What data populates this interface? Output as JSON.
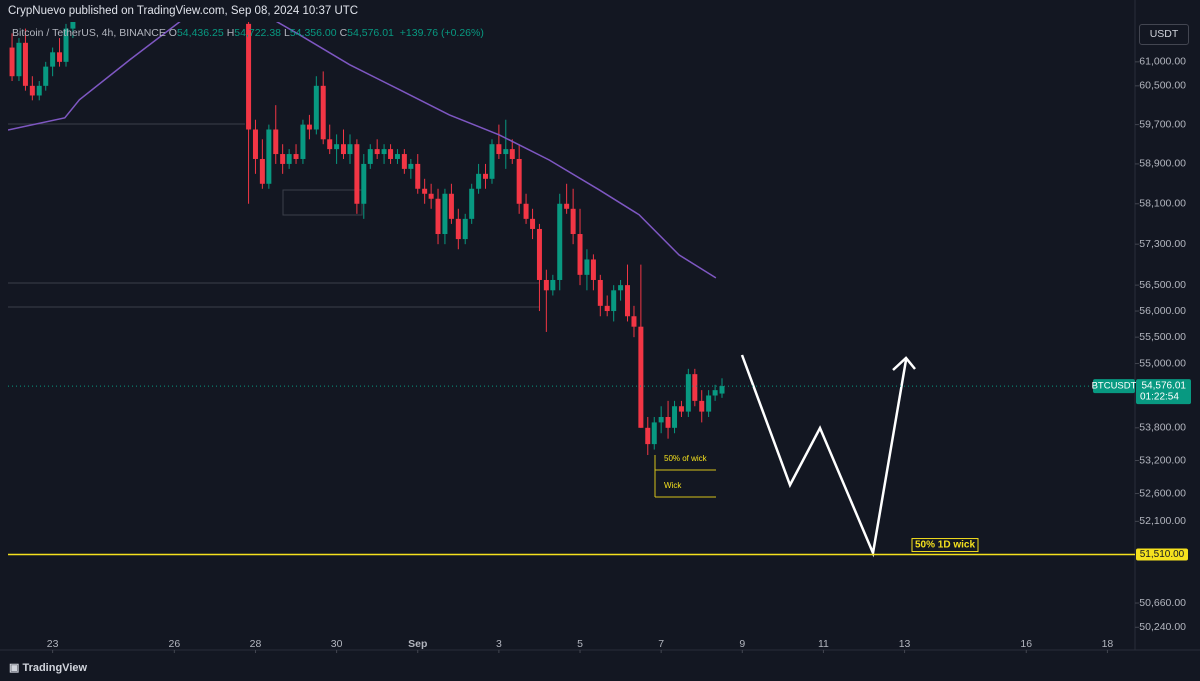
{
  "header": "CrypNuevo published on TradingView.com, Sep 08, 2024 10:37 UTC",
  "footer_logo": "TradingView",
  "chart_data": {
    "type": "candlestick",
    "title": "Bitcoin / TetherUS, 4h, BINANCE",
    "ohlc_legend": [
      {
        "key": "O",
        "value": "54,436.25"
      },
      {
        "key": "H",
        "value": "54,722.38"
      },
      {
        "key": "L",
        "value": "54,356.00"
      },
      {
        "key": "C",
        "value": "54,576.01"
      }
    ],
    "change": "+139.76 (+0.26%)",
    "currency": "USDT",
    "up_color": "#089981",
    "down_color": "#f23645",
    "x": [
      22,
      22.17,
      22.33,
      22.5,
      22.67,
      22.83,
      23,
      23.17,
      23.33,
      23.5,
      27.83,
      28,
      28.17,
      28.33,
      28.5,
      28.67,
      28.83,
      29,
      29.17,
      29.33,
      29.5,
      29.67,
      29.83,
      30,
      30.17,
      30.33,
      30.5,
      30.67,
      30.83,
      31,
      31.17,
      31.33,
      31.5,
      31.67,
      31.83,
      32,
      32.17,
      32.33,
      32.5,
      32.67,
      32.83,
      33,
      33.17,
      33.33,
      33.5,
      33.67,
      33.83,
      34,
      34.17,
      34.33,
      34.5,
      34.67,
      34.83,
      35,
      35.17,
      35.33,
      35.5,
      35.67,
      35.83,
      36,
      36.17,
      36.33,
      36.5,
      36.67,
      36.83,
      37,
      37.17,
      37.33,
      37.5,
      37.67,
      37.83,
      38,
      38.17,
      38.33,
      38.5,
      38.67,
      38.83,
      39,
      39.17,
      39.33,
      39.5
    ],
    "open": [
      61300,
      60700,
      61400,
      60500,
      60300,
      60500,
      60900,
      61200,
      61000,
      61700,
      61800,
      59600,
      59000,
      58500,
      59600,
      59100,
      58900,
      59100,
      59000,
      59700,
      59600,
      60500,
      59400,
      59200,
      59300,
      59100,
      59300,
      58100,
      58900,
      59200,
      59100,
      59200,
      59000,
      59100,
      58800,
      58900,
      58400,
      58300,
      58200,
      57500,
      58300,
      57800,
      57400,
      57800,
      58400,
      58700,
      58600,
      59300,
      59100,
      59200,
      59000,
      58100,
      57800,
      57600,
      56600,
      56400,
      56600,
      58100,
      58000,
      57500,
      56700,
      57000,
      56600,
      56100,
      56000,
      56400,
      56500,
      55900,
      55700,
      53800,
      53500,
      53900,
      54000,
      53800,
      54200,
      54100,
      54800,
      54300,
      54100,
      54400,
      54436.25
    ],
    "high": [
      61600,
      61500,
      61700,
      60700,
      60600,
      61000,
      61300,
      61500,
      61800,
      62100,
      62000,
      59800,
      59400,
      59700,
      60100,
      59300,
      59200,
      59300,
      59800,
      59900,
      60700,
      60800,
      59700,
      59500,
      59600,
      59500,
      59400,
      59100,
      59300,
      59400,
      59300,
      59300,
      59200,
      59200,
      59000,
      59100,
      58600,
      58500,
      58400,
      58400,
      58500,
      58000,
      57900,
      58500,
      58900,
      58900,
      59400,
      59700,
      59800,
      59400,
      59300,
      58300,
      58000,
      57700,
      56800,
      56700,
      58300,
      58500,
      58400,
      58000,
      57200,
      57100,
      56700,
      56300,
      56500,
      56600,
      56900,
      56100,
      56900,
      54000,
      54000,
      54200,
      54300,
      54300,
      54300,
      54900,
      54900,
      54500,
      54500,
      54600,
      54722.38
    ],
    "low": [
      60600,
      60600,
      60400,
      60200,
      60200,
      60400,
      60700,
      60900,
      60900,
      61500,
      58100,
      58700,
      58400,
      58400,
      58900,
      58700,
      58800,
      58900,
      58900,
      59400,
      59500,
      59300,
      59100,
      58900,
      59000,
      58900,
      57900,
      57800,
      58800,
      59000,
      58900,
      58900,
      58900,
      58700,
      58600,
      58300,
      58100,
      58000,
      57300,
      57300,
      57700,
      57200,
      57300,
      57700,
      58300,
      58400,
      58500,
      59000,
      58800,
      58900,
      57900,
      57700,
      57400,
      56000,
      55600,
      56300,
      56400,
      57900,
      57300,
      56500,
      56400,
      56400,
      55900,
      55900,
      55800,
      56200,
      55800,
      55500,
      53800,
      53300,
      53400,
      53700,
      53600,
      53700,
      54000,
      54000,
      54200,
      53900,
      54000,
      54300,
      54356
    ],
    "close": [
      60700,
      61400,
      60500,
      60300,
      60500,
      60900,
      61200,
      61000,
      61700,
      61950,
      59600,
      59000,
      58500,
      59600,
      59100,
      58900,
      59100,
      59000,
      59700,
      59600,
      60500,
      59400,
      59200,
      59300,
      59100,
      59300,
      58100,
      58900,
      59200,
      59100,
      59200,
      59000,
      59100,
      58800,
      58900,
      58400,
      58300,
      58200,
      57500,
      58300,
      57800,
      57400,
      57800,
      58400,
      58700,
      58600,
      59300,
      59100,
      59200,
      59000,
      58100,
      57800,
      57600,
      56600,
      56400,
      56600,
      58100,
      58000,
      57500,
      56700,
      57000,
      56600,
      56100,
      56000,
      56400,
      56500,
      55900,
      55700,
      53800,
      53500,
      53900,
      54000,
      53800,
      54200,
      54100,
      54800,
      54300,
      54100,
      54400,
      54500,
      54576.01
    ],
    "ma": {
      "color": "#7e57c2",
      "x": [
        21.9,
        23.3,
        23.66,
        24.9,
        26.37,
        28.22,
        29.08,
        30.32,
        31.55,
        32.78,
        34.01,
        35.24,
        36.47,
        37.46,
        38.44,
        39.35
      ],
      "values": [
        59590,
        59840,
        60210,
        61040,
        62000,
        62000,
        61570,
        60940,
        60420,
        59900,
        59490,
        58980,
        58380,
        57880,
        57090,
        56640
      ]
    },
    "xlim": [
      21.9,
      49.68
    ],
    "xticks": [
      23,
      26,
      28,
      30,
      {
        "value": 32,
        "label": "Sep"
      },
      {
        "value": 34,
        "label": "3"
      },
      {
        "value": 36,
        "label": "5"
      },
      {
        "value": 38,
        "label": "7"
      },
      {
        "value": 40,
        "label": "9"
      },
      {
        "value": 42,
        "label": "11"
      },
      {
        "value": 44,
        "label": "13"
      },
      {
        "value": 47,
        "label": "16"
      },
      {
        "value": 49,
        "label": "18"
      }
    ],
    "ylim": [
      49850,
      61840
    ],
    "yticks": [
      {
        "value": 61000,
        "label": "61,000.00"
      },
      {
        "value": 60500,
        "label": "60,500.00"
      },
      {
        "value": 59700,
        "label": "59,700.00"
      },
      {
        "value": 58900,
        "label": "58,900.00"
      },
      {
        "value": 58100,
        "label": "58,100.00"
      },
      {
        "value": 57300,
        "label": "57,300.00"
      },
      {
        "value": 56500,
        "label": "56,500.00"
      },
      {
        "value": 56000,
        "label": "56,000.00"
      },
      {
        "value": 55500,
        "label": "55,500.00"
      },
      {
        "value": 55000,
        "label": "55,000.00"
      },
      {
        "value": 53800,
        "label": "53,800.00"
      },
      {
        "value": 53200,
        "label": "53,200.00"
      },
      {
        "value": 52600,
        "label": "52,600.00"
      },
      {
        "value": 52100,
        "label": "52,100.00"
      },
      {
        "value": 50660,
        "label": "50,660.00"
      },
      {
        "value": 50240,
        "label": "50,240.00"
      }
    ],
    "log": true,
    "grid": false,
    "last_price": {
      "symbol": "BTCUSDT",
      "value": 54576.01,
      "label": "54,576.01",
      "countdown": "01:22:54"
    },
    "levels": [
      {
        "value": 51510,
        "label": "51,510.00",
        "color": "#f5e11e"
      }
    ],
    "annotations": [
      "50% 1D wick",
      "50% of wick",
      "Wick"
    ]
  }
}
